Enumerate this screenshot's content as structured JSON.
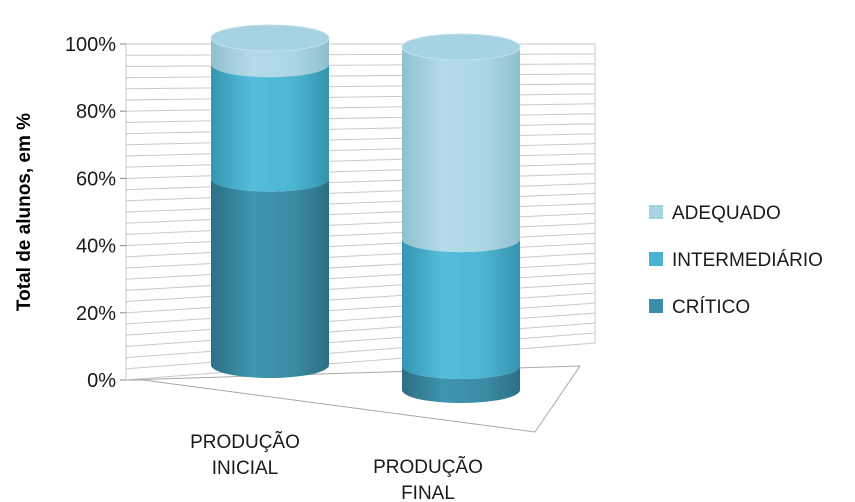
{
  "chart_data": {
    "type": "bar",
    "style": "3d-stacked-100-cylinder",
    "categories": [
      "PRODUÇÃO INICIAL",
      "PRODUÇÃO FINAL"
    ],
    "category_lines": [
      [
        "PRODUÇÃO",
        "INICIAL"
      ],
      [
        "PRODUÇÃO",
        "FINAL"
      ]
    ],
    "series": [
      {
        "name": "CRÍTICO",
        "values": [
          57,
          7
        ],
        "color": "#3b8ea8"
      },
      {
        "name": "INTERMEDIÁRIO",
        "values": [
          35,
          37
        ],
        "color": "#48b3d0"
      },
      {
        "name": "ADEQUADO",
        "values": [
          8,
          56
        ],
        "color": "#a6d3e1"
      }
    ],
    "ylabel": "Total de alunos, em %",
    "ylim": [
      0,
      100
    ],
    "yticks": [
      "0%",
      "20%",
      "40%",
      "60%",
      "80%",
      "100%"
    ],
    "grid": true,
    "legend": "right"
  }
}
